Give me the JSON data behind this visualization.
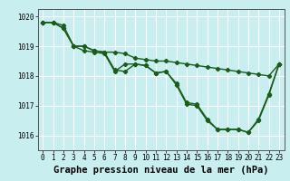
{
  "title": "Graphe pression niveau de la mer (hPa)",
  "xlim": [
    -0.5,
    23.5
  ],
  "ylim": [
    1015.5,
    1020.25
  ],
  "yticks": [
    1016,
    1017,
    1018,
    1019,
    1020
  ],
  "xticks": [
    0,
    1,
    2,
    3,
    4,
    5,
    6,
    7,
    8,
    9,
    10,
    11,
    12,
    13,
    14,
    15,
    16,
    17,
    18,
    19,
    20,
    21,
    22,
    23
  ],
  "bg_color": "#c8eef0",
  "grid_color": "#ffffff",
  "line_color": "#1a5c1a",
  "line1": [
    1019.8,
    1019.8,
    1019.7,
    1019.0,
    1019.0,
    1018.85,
    1018.8,
    1018.8,
    1018.75,
    1018.6,
    1018.55,
    1018.5,
    1018.5,
    1018.45,
    1018.4,
    1018.35,
    1018.3,
    1018.25,
    1018.2,
    1018.15,
    1018.1,
    1018.05,
    1018.0,
    1018.4
  ],
  "line2": [
    1019.8,
    1019.8,
    1019.6,
    1019.0,
    1019.0,
    1018.85,
    1018.8,
    1018.2,
    1018.15,
    1018.4,
    1018.35,
    1018.1,
    1018.15,
    1017.75,
    1017.1,
    1017.05,
    1016.55,
    1016.2,
    1016.2,
    1016.2,
    1016.1,
    1016.55,
    1017.4,
    1018.4
  ],
  "line3": [
    1019.8,
    1019.8,
    1019.6,
    1019.0,
    1018.85,
    1018.8,
    1018.75,
    1018.15,
    1018.4,
    1018.4,
    1018.35,
    1018.1,
    1018.15,
    1017.7,
    1017.05,
    1017.0,
    1016.5,
    1016.2,
    1016.2,
    1016.2,
    1016.1,
    1016.5,
    1017.35,
    1018.4
  ],
  "marker": "D",
  "marker_size": 2.2,
  "linewidth": 1.0,
  "title_fontsize": 7.5,
  "tick_fontsize": 5.5
}
